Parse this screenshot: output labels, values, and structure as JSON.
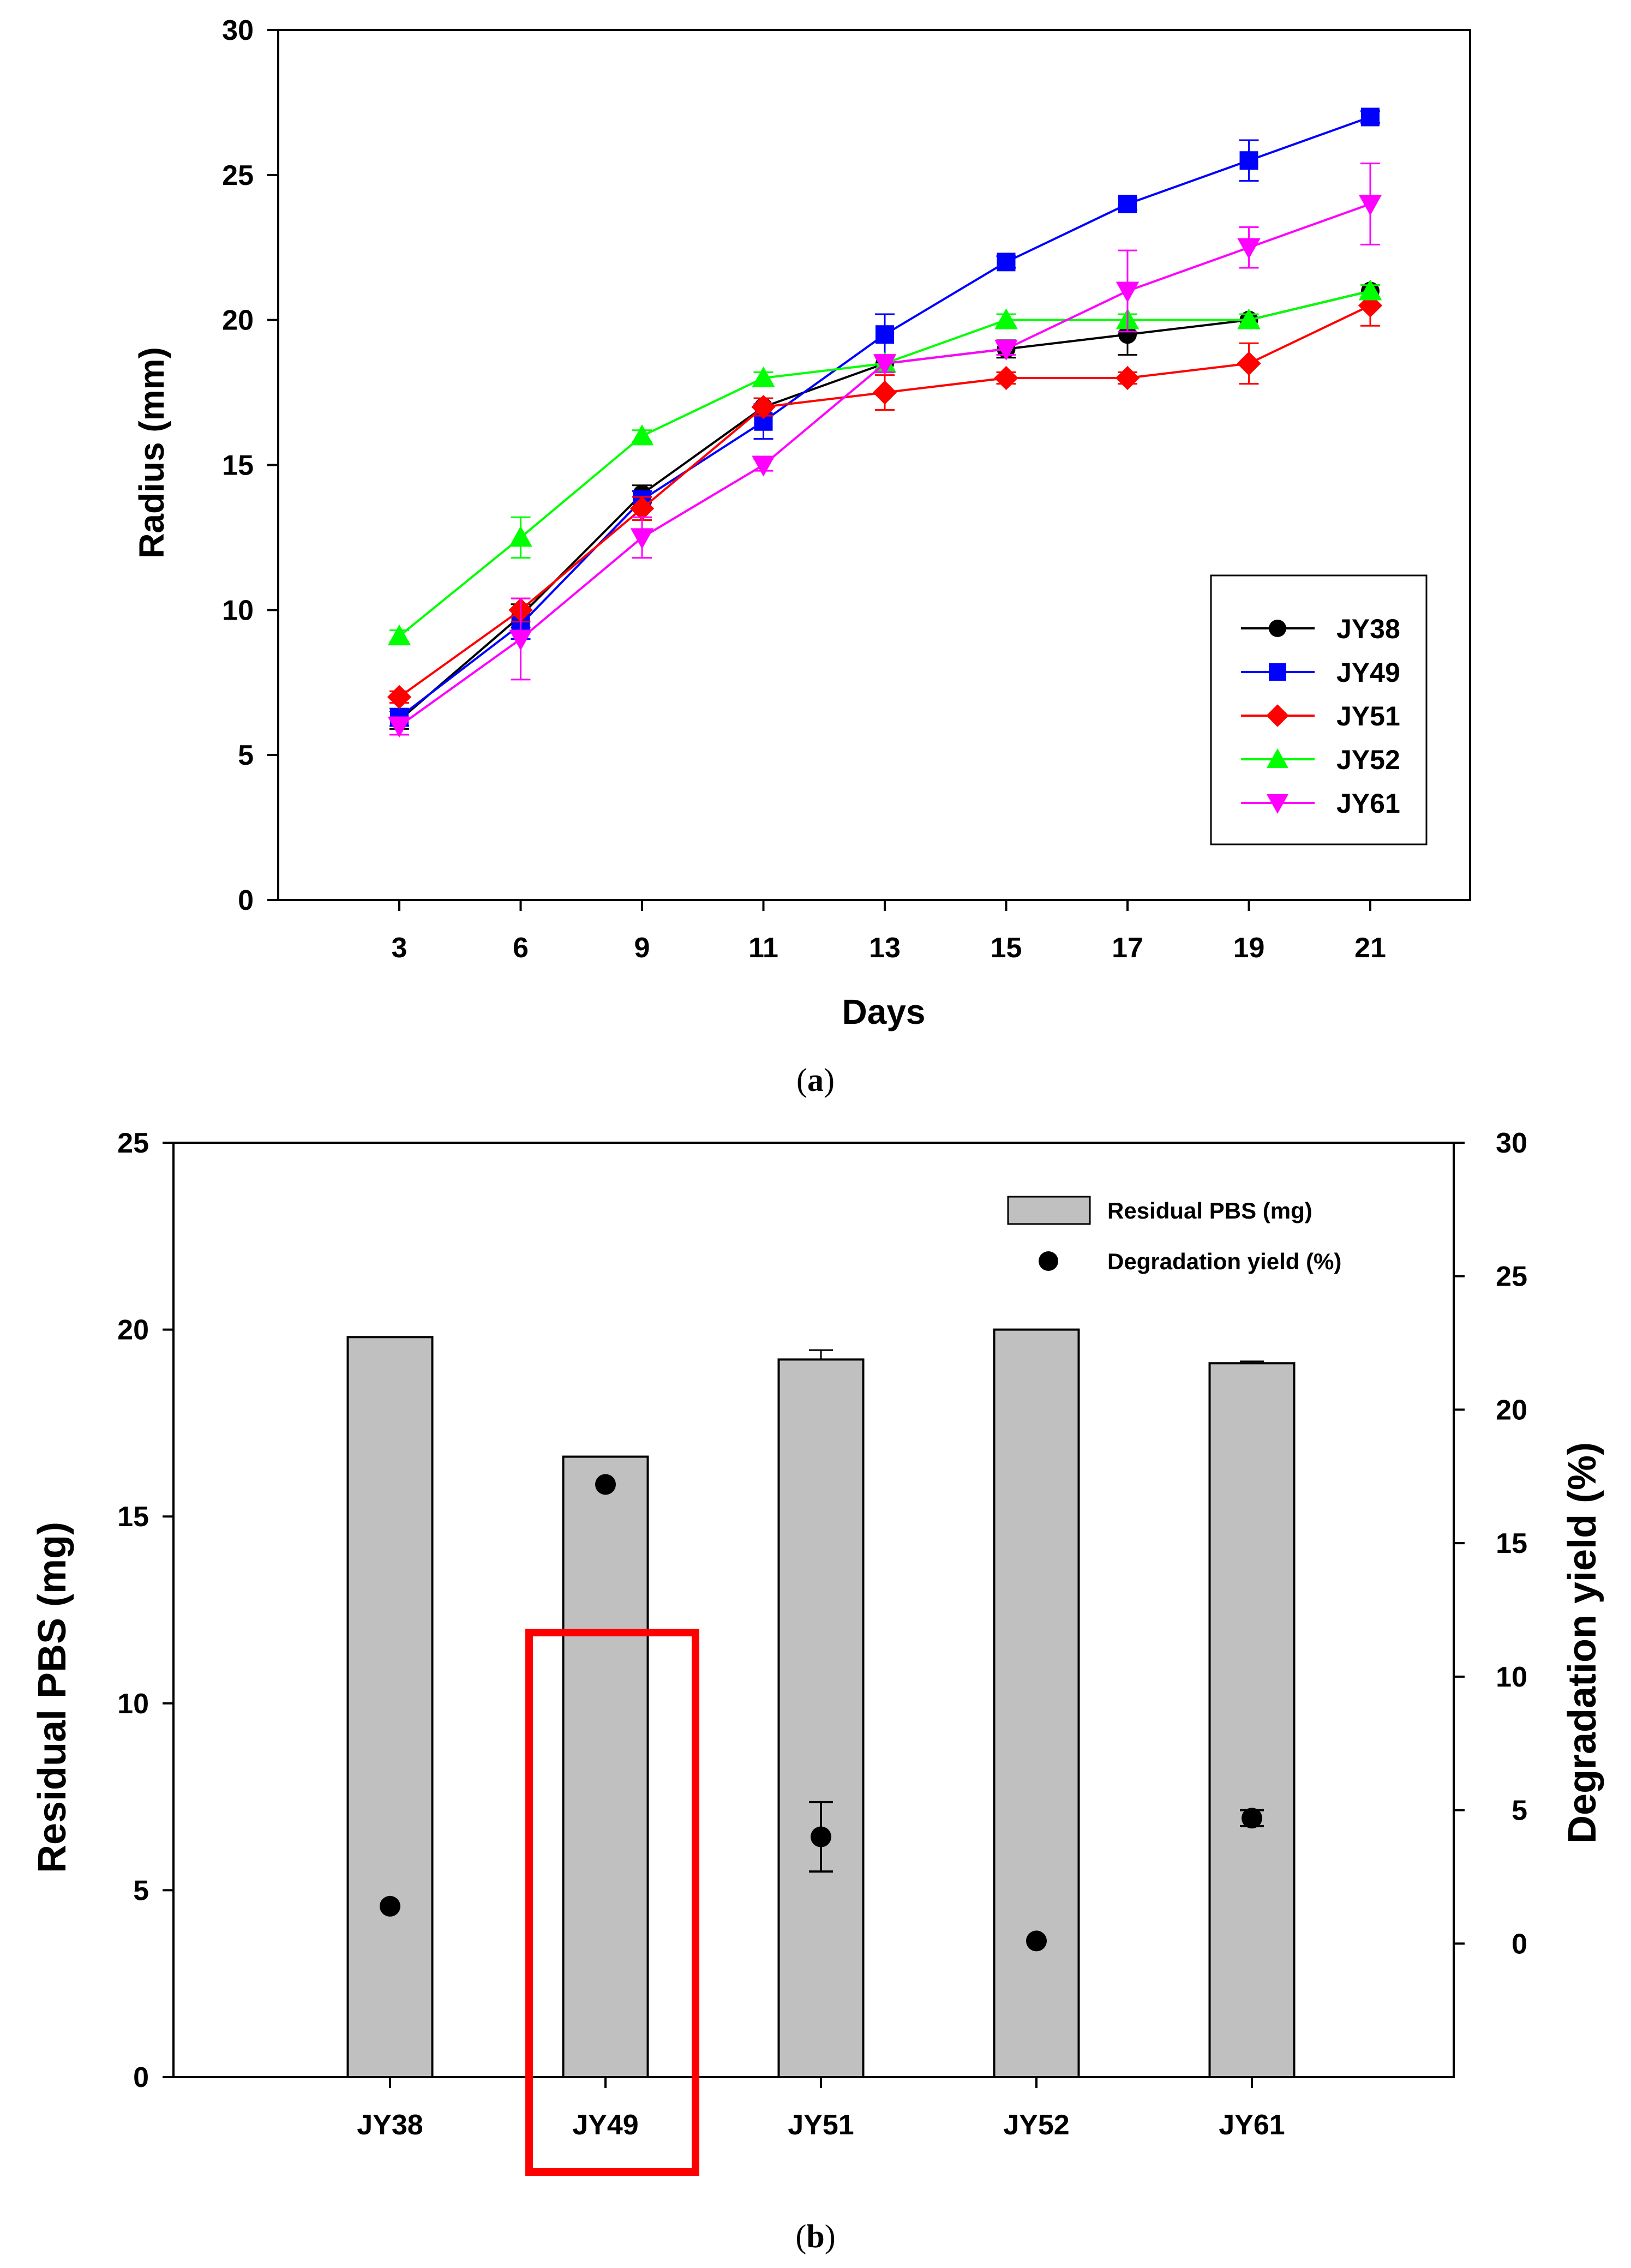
{
  "chart_data": [
    {
      "id": "a",
      "type": "line",
      "panel_label": "a",
      "title": "",
      "xlabel": "Days",
      "ylabel": "Radius (mm)",
      "x": [
        3,
        6,
        9,
        11,
        13,
        15,
        17,
        19,
        21
      ],
      "x_tick_labels": [
        "3",
        "6",
        "9",
        "11",
        "13",
        "15",
        "17",
        "19",
        "21"
      ],
      "ylim": [
        0,
        30
      ],
      "y_ticks": [
        0,
        5,
        10,
        15,
        20,
        25,
        30
      ],
      "grid": false,
      "legend_position": "bottom-right",
      "series": [
        {
          "name": "JY38",
          "color": "#000000",
          "marker": "circle",
          "values": [
            6.2,
            9.8,
            14.0,
            17.0,
            18.5,
            19.0,
            19.5,
            20.0,
            21.0
          ],
          "errors": [
            0.3,
            0.4,
            0.3,
            0.3,
            0.3,
            0.3,
            0.7,
            0.2,
            0.2
          ]
        },
        {
          "name": "JY49",
          "color": "#0000ff",
          "marker": "square",
          "values": [
            6.3,
            9.5,
            13.8,
            16.5,
            19.5,
            22.0,
            24.0,
            25.5,
            27.0
          ],
          "errors": [
            0.3,
            0.5,
            0.3,
            0.6,
            0.7,
            0.2,
            0.2,
            0.7,
            0.2
          ]
        },
        {
          "name": "JY51",
          "color": "#ff0000",
          "marker": "diamond",
          "values": [
            7.0,
            10.0,
            13.5,
            17.0,
            17.5,
            18.0,
            18.0,
            18.5,
            20.5
          ],
          "errors": [
            0.2,
            0.4,
            0.4,
            0.3,
            0.6,
            0.2,
            0.2,
            0.7,
            0.7
          ]
        },
        {
          "name": "JY52",
          "color": "#00ff00",
          "marker": "triangle-up",
          "values": [
            9.1,
            12.5,
            16.0,
            18.0,
            18.5,
            20.0,
            20.0,
            20.0,
            21.0
          ],
          "errors": [
            0.2,
            0.7,
            0.2,
            0.2,
            0.2,
            0.2,
            0.2,
            0.2,
            0.2
          ]
        },
        {
          "name": "JY61",
          "color": "#ff00ff",
          "marker": "triangle-down",
          "values": [
            6.0,
            9.0,
            12.5,
            15.0,
            18.5,
            19.0,
            21.0,
            22.5,
            24.0
          ],
          "errors": [
            0.3,
            1.4,
            0.7,
            0.2,
            0.3,
            0.2,
            1.4,
            0.7,
            1.4
          ]
        }
      ]
    },
    {
      "id": "b",
      "type": "bar",
      "panel_label": "b",
      "title": "",
      "xlabel": "",
      "categories": [
        "JY38",
        "JY49",
        "JY51",
        "JY52",
        "JY61"
      ],
      "ylabel": "Residual PBS (mg)",
      "ylim": [
        0,
        25
      ],
      "y_ticks": [
        0,
        5,
        10,
        15,
        20,
        25
      ],
      "y2label": "Degradation yield (%)",
      "y2lim": [
        -5,
        30
      ],
      "y2_ticks": [
        0,
        5,
        10,
        15,
        20,
        25,
        30
      ],
      "grid": false,
      "legend_position": "top-right",
      "highlight_category": "JY49",
      "highlight_color": "#ff0000",
      "series": [
        {
          "name": "Residual PBS (mg)",
          "kind": "bar",
          "axis": "left",
          "color": "#c0c0c0",
          "values": [
            19.8,
            16.6,
            19.2,
            20.0,
            19.1
          ],
          "errors": [
            0,
            0,
            0.25,
            0,
            0.05
          ]
        },
        {
          "name": "Degradation yield (%)",
          "kind": "scatter",
          "axis": "right",
          "color": "#000000",
          "values": [
            1.4,
            17.2,
            4.0,
            0.1,
            4.7
          ],
          "errors": [
            0,
            0,
            1.3,
            0,
            0.3
          ]
        }
      ]
    }
  ]
}
